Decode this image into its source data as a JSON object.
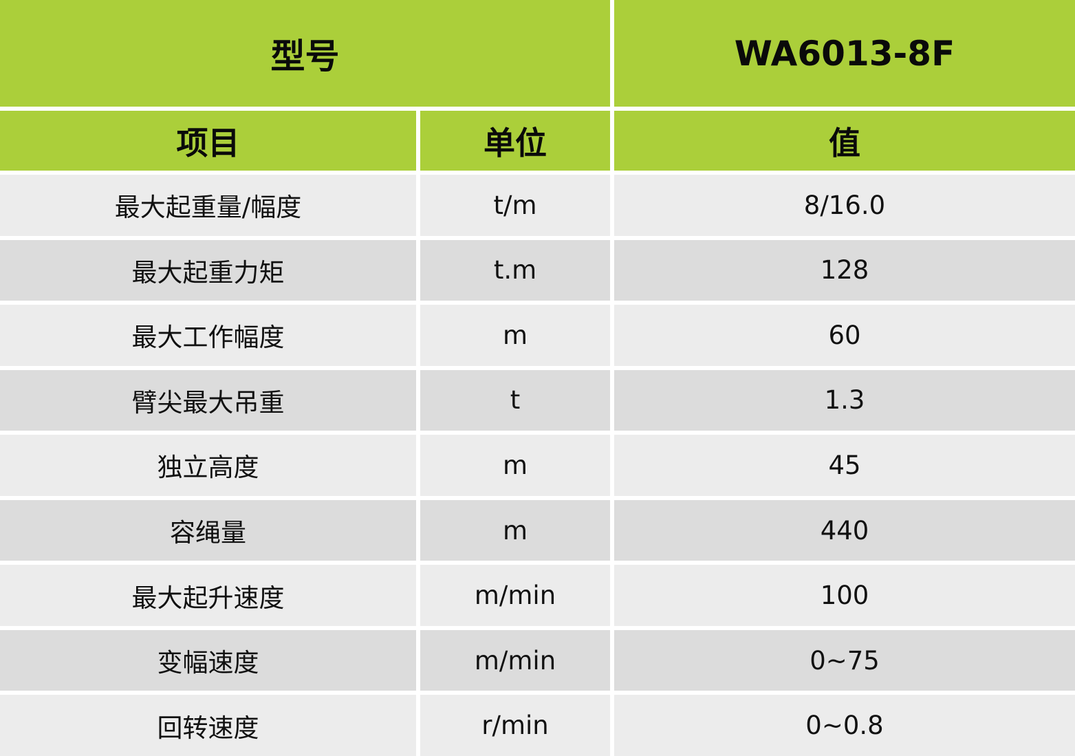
{
  "header": {
    "model_label": "型号",
    "model_value": "WA6013-8F"
  },
  "columns": [
    "项目",
    "单位",
    "值"
  ],
  "rows": [
    {
      "item": "最大起重量/幅度",
      "unit": "t/m",
      "value": "8/16.0"
    },
    {
      "item": "最大起重力矩",
      "unit": "t.m",
      "value": "128"
    },
    {
      "item": "最大工作幅度",
      "unit": "m",
      "value": "60"
    },
    {
      "item": "臂尖最大吊重",
      "unit": "t",
      "value": "1.3"
    },
    {
      "item": "独立高度",
      "unit": "m",
      "value": "45"
    },
    {
      "item": "容绳量",
      "unit": "m",
      "value": "440"
    },
    {
      "item": "最大起升速度",
      "unit": "m/min",
      "value": "100"
    },
    {
      "item": "变幅速度",
      "unit": "m/min",
      "value": "0~75"
    },
    {
      "item": "回转速度",
      "unit": "r/min",
      "value": "0~0.8"
    }
  ],
  "colors": {
    "header": "#abcf3a",
    "row_light": "#ececec",
    "row_dark": "#dcdcdc"
  }
}
